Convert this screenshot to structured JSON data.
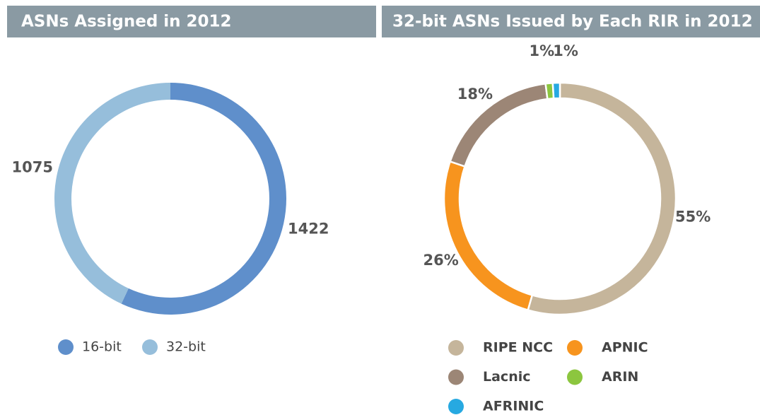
{
  "chart_data": [
    {
      "type": "donut",
      "title": "ASNs Assigned in 2012",
      "categories": [
        "16-bit",
        "32-bit"
      ],
      "values": [
        1422,
        1075
      ],
      "colors": [
        "#5f8fcb",
        "#96bedb"
      ],
      "legend": "bottom"
    },
    {
      "type": "donut",
      "title": "32-bit ASNs Issued by Each RIR in 2012",
      "categories": [
        "RIPE NCC",
        "APNIC",
        "Lacnic",
        "ARIN",
        "AFRINIC"
      ],
      "values": [
        55,
        26,
        18,
        1,
        1
      ],
      "value_labels": [
        "55%",
        "26%",
        "18%",
        "1%",
        "1%"
      ],
      "colors": [
        "#c5b59b",
        "#f7941e",
        "#9c8676",
        "#8cc63f",
        "#27a9e1"
      ],
      "legend": "bottom"
    }
  ]
}
